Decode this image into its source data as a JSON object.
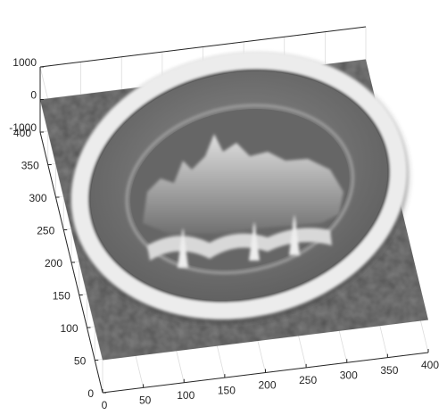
{
  "chart_data": {
    "type": "surface",
    "xlim": [
      0,
      400
    ],
    "ylim": [
      0,
      400
    ],
    "zlim": [
      -1000,
      1000
    ],
    "xticks": [
      0,
      50,
      100,
      150,
      200,
      250,
      300,
      350,
      400
    ],
    "yticks": [
      0,
      50,
      100,
      150,
      200,
      250,
      300,
      350,
      400
    ],
    "zticks": [
      -1000,
      0,
      1000
    ],
    "grid": true,
    "colormap": "gray"
  }
}
